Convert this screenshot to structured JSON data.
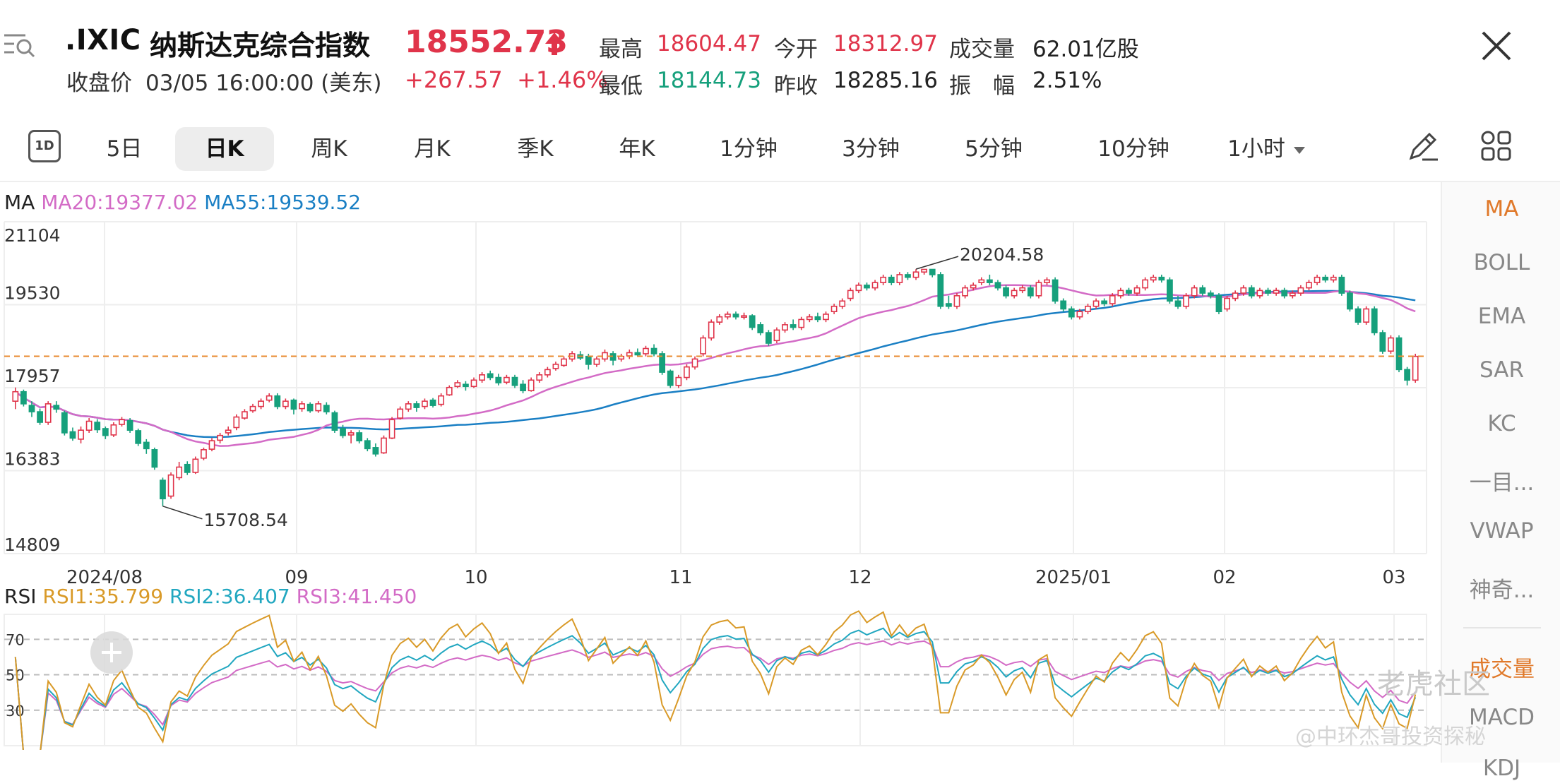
{
  "header": {
    "ticker": ".IXIC",
    "name": "纳斯达克综合指数",
    "price": "18552.73",
    "close_label": "收盘价",
    "close_time": "03/05 16:00:00 (美东)",
    "change": "+267.57",
    "change_pct": "+1.46%",
    "stats": {
      "high_label": "最高",
      "high": "18604.47",
      "low_label": "最低",
      "low": "18144.73",
      "open_label": "今开",
      "open": "18312.97",
      "prev_close_label": "昨收",
      "prev_close": "18285.16",
      "volume_label": "成交量",
      "volume": "62.01亿股",
      "amplitude_label": "振　幅",
      "amplitude": "2.51%"
    }
  },
  "tabs": [
    {
      "label": "5日"
    },
    {
      "label": "日K",
      "active": true
    },
    {
      "label": "周K"
    },
    {
      "label": "月K"
    },
    {
      "label": "季K"
    },
    {
      "label": "年K"
    },
    {
      "label": "1分钟"
    },
    {
      "label": "3分钟"
    },
    {
      "label": "5分钟"
    },
    {
      "label": "10分钟"
    },
    {
      "label": "1小时"
    }
  ],
  "tab_1d_icon": "1D",
  "ma_legend": {
    "title": "MA",
    "ma20": "MA20:19377.02",
    "ma55": "MA55:19539.52"
  },
  "rsi_legend": {
    "title": "RSI",
    "rsi1": "RSI1:35.799",
    "rsi2": "RSI2:36.407",
    "rsi3": "RSI3:41.450"
  },
  "side_indicators": [
    {
      "label": "MA",
      "active": true
    },
    {
      "label": "BOLL"
    },
    {
      "label": "EMA"
    },
    {
      "label": "SAR"
    },
    {
      "label": "KC"
    },
    {
      "label": "一目..."
    },
    {
      "label": "VWAP"
    },
    {
      "label": "神奇..."
    },
    {
      "label": "成交量"
    },
    {
      "label": "MACD"
    },
    {
      "label": "KDJ"
    }
  ],
  "watermark": {
    "main": "老虎社区",
    "sub": "@中环杰哥投资探秘"
  },
  "colors": {
    "up": "#e0344a",
    "down": "#16a07c",
    "ma20": "#d36bc6",
    "ma55": "#1a7fc4",
    "rsi1": "#d99a28",
    "rsi2": "#21a7c0",
    "rsi3": "#d36bc6",
    "dashed": "#e88a2e"
  },
  "icons": [
    "menu-search-icon",
    "price-up-arrow-icon",
    "close-icon",
    "timeframe-1d-icon",
    "chevron-down-icon",
    "draw-pen-icon",
    "layout-grid-icon",
    "add-icon"
  ],
  "chart_data": {
    "type": "candlestick",
    "y_ticks": [
      "21104",
      "19530",
      "17957",
      "16383",
      "14809"
    ],
    "x_ticks": [
      "2024/08",
      "09",
      "10",
      "11",
      "12",
      "2025/01",
      "02",
      "03"
    ],
    "annotations": {
      "high": "20204.58",
      "low": "15708.54"
    },
    "reference_price": 18552.73,
    "ylim": [
      14809,
      21104
    ],
    "candles": [
      [
        17700,
        17880,
        17550,
        17960
      ],
      [
        17880,
        17650,
        17600,
        17920
      ],
      [
        17620,
        17500,
        17400,
        17700
      ],
      [
        17500,
        17300,
        17250,
        17560
      ],
      [
        17300,
        17650,
        17250,
        17700
      ],
      [
        17620,
        17550,
        17480,
        17700
      ],
      [
        17480,
        17100,
        17050,
        17520
      ],
      [
        17120,
        17000,
        16950,
        17200
      ],
      [
        16980,
        17150,
        16900,
        17220
      ],
      [
        17150,
        17320,
        17100,
        17380
      ],
      [
        17300,
        17160,
        17100,
        17360
      ],
      [
        17180,
        17050,
        16980,
        17220
      ],
      [
        17060,
        17250,
        17020,
        17300
      ],
      [
        17260,
        17350,
        17220,
        17400
      ],
      [
        17330,
        17150,
        17100,
        17380
      ],
      [
        17140,
        16900,
        16850,
        17180
      ],
      [
        16920,
        16800,
        16700,
        16980
      ],
      [
        16780,
        16450,
        16400,
        16820
      ],
      [
        16200,
        15850,
        15708.54,
        16250
      ],
      [
        15900,
        16300,
        15850,
        16350
      ],
      [
        16250,
        16450,
        16200,
        16550
      ],
      [
        16500,
        16350,
        16300,
        16560
      ],
      [
        16350,
        16600,
        16320,
        16650
      ],
      [
        16620,
        16780,
        16580,
        16820
      ],
      [
        16790,
        16950,
        16750,
        17000
      ],
      [
        16960,
        17050,
        16900,
        17100
      ],
      [
        17100,
        17150,
        17050,
        17220
      ],
      [
        17200,
        17400,
        17150,
        17450
      ],
      [
        17380,
        17500,
        17350,
        17550
      ],
      [
        17520,
        17600,
        17480,
        17650
      ],
      [
        17600,
        17700,
        17550,
        17750
      ],
      [
        17720,
        17800,
        17680,
        17850
      ],
      [
        17800,
        17600,
        17550,
        17850
      ],
      [
        17600,
        17700,
        17550,
        17750
      ],
      [
        17720,
        17550,
        17450,
        17750
      ],
      [
        17560,
        17650,
        17500,
        17700
      ],
      [
        17640,
        17520,
        17480,
        17680
      ],
      [
        17520,
        17650,
        17480,
        17700
      ],
      [
        17620,
        17500,
        17450,
        17680
      ],
      [
        17480,
        17150,
        17100,
        17520
      ],
      [
        17180,
        17050,
        17000,
        17250
      ],
      [
        17060,
        17100,
        16900,
        17150
      ],
      [
        17100,
        16950,
        16900,
        17150
      ],
      [
        16950,
        16800,
        16750,
        17000
      ],
      [
        16820,
        16700,
        16650,
        16900
      ],
      [
        16720,
        17000,
        16700,
        17050
      ],
      [
        17000,
        17350,
        16980,
        17400
      ],
      [
        17380,
        17550,
        17350,
        17600
      ],
      [
        17550,
        17650,
        17500,
        17700
      ],
      [
        17650,
        17580,
        17500,
        17700
      ],
      [
        17600,
        17700,
        17550,
        17750
      ],
      [
        17720,
        17620,
        17580,
        17760
      ],
      [
        17640,
        17800,
        17600,
        17850
      ],
      [
        17820,
        17960,
        17800,
        18000
      ],
      [
        17980,
        18050,
        17950,
        18100
      ],
      [
        18020,
        17980,
        17900,
        18080
      ],
      [
        17980,
        18100,
        17950,
        18150
      ],
      [
        18100,
        18200,
        18050,
        18250
      ],
      [
        18220,
        18150,
        18100,
        18280
      ],
      [
        18150,
        18050,
        18000,
        18220
      ],
      [
        18060,
        18150,
        18020,
        18200
      ],
      [
        18150,
        18000,
        17950,
        18200
      ],
      [
        18020,
        17900,
        17850,
        18100
      ],
      [
        17900,
        18100,
        17880,
        18150
      ],
      [
        18100,
        18200,
        18050,
        18250
      ],
      [
        18200,
        18300,
        18150,
        18350
      ],
      [
        18320,
        18400,
        18280,
        18450
      ],
      [
        18380,
        18500,
        18350,
        18550
      ],
      [
        18500,
        18600,
        18450,
        18650
      ],
      [
        18580,
        18520,
        18480,
        18650
      ],
      [
        18550,
        18400,
        18300,
        18600
      ],
      [
        18400,
        18500,
        18350,
        18550
      ],
      [
        18500,
        18620,
        18450,
        18680
      ],
      [
        18600,
        18480,
        18380,
        18650
      ],
      [
        18500,
        18550,
        18450,
        18600
      ],
      [
        18560,
        18620,
        18500,
        18680
      ],
      [
        18620,
        18580,
        18550,
        18700
      ],
      [
        18600,
        18700,
        18550,
        18750
      ],
      [
        18700,
        18600,
        18550,
        18780
      ],
      [
        18600,
        18250,
        18200,
        18650
      ],
      [
        18270,
        18000,
        17950,
        18300
      ],
      [
        18000,
        18150,
        17950,
        18200
      ],
      [
        18150,
        18350,
        18100,
        18400
      ],
      [
        18350,
        18500,
        18300,
        18550
      ],
      [
        18600,
        18900,
        18550,
        18950
      ],
      [
        18900,
        19200,
        18850,
        19250
      ],
      [
        19200,
        19300,
        19150,
        19350
      ],
      [
        19300,
        19350,
        19250,
        19400
      ],
      [
        19350,
        19300,
        19250,
        19400
      ],
      [
        19300,
        19320,
        19250,
        19380
      ],
      [
        19320,
        19100,
        19050,
        19350
      ],
      [
        19150,
        19000,
        18950,
        19200
      ],
      [
        19000,
        18800,
        18750,
        19050
      ],
      [
        18850,
        19050,
        18800,
        19100
      ],
      [
        19050,
        19150,
        19000,
        19200
      ],
      [
        19150,
        19100,
        19050,
        19250
      ],
      [
        19100,
        19250,
        19050,
        19300
      ],
      [
        19250,
        19300,
        19200,
        19350
      ],
      [
        19300,
        19250,
        19200,
        19380
      ],
      [
        19250,
        19350,
        19200,
        19400
      ],
      [
        19400,
        19500,
        19350,
        19550
      ],
      [
        19500,
        19600,
        19450,
        19650
      ],
      [
        19650,
        19800,
        19600,
        19850
      ],
      [
        19800,
        19900,
        19750,
        19950
      ],
      [
        19900,
        19850,
        19800,
        19950
      ],
      [
        19850,
        19950,
        19800,
        20000
      ],
      [
        19950,
        20050,
        19900,
        20100
      ],
      [
        20050,
        19950,
        19900,
        20100
      ],
      [
        19950,
        20100,
        19900,
        20150
      ],
      [
        20100,
        20050,
        20000,
        20150
      ],
      [
        20050,
        20150,
        20000,
        20204.58
      ],
      [
        20150,
        20200,
        20100,
        20204.58
      ],
      [
        20200,
        20100,
        20050,
        20204.58
      ],
      [
        20100,
        19500,
        19450,
        20150
      ],
      [
        19550,
        19500,
        19450,
        19700
      ],
      [
        19500,
        19700,
        19450,
        19750
      ],
      [
        19700,
        19850,
        19650,
        19900
      ],
      [
        19850,
        19900,
        19800,
        19950
      ],
      [
        19950,
        20000,
        19900,
        20050
      ],
      [
        20000,
        19950,
        19900,
        20100
      ],
      [
        19950,
        19850,
        19800,
        20000
      ],
      [
        19850,
        19700,
        19650,
        19900
      ],
      [
        19700,
        19800,
        19650,
        19850
      ],
      [
        19800,
        19850,
        19750,
        19900
      ],
      [
        19850,
        19700,
        19650,
        19900
      ],
      [
        19700,
        19950,
        19650,
        20000
      ],
      [
        19950,
        20000,
        19900,
        20050
      ],
      [
        20000,
        19600,
        19550,
        20050
      ],
      [
        19600,
        19450,
        19400,
        19650
      ],
      [
        19450,
        19300,
        19250,
        19500
      ],
      [
        19300,
        19400,
        19250,
        19450
      ],
      [
        19400,
        19500,
        19350,
        19550
      ],
      [
        19500,
        19600,
        19450,
        19650
      ],
      [
        19600,
        19550,
        19500,
        19650
      ],
      [
        19550,
        19700,
        19500,
        19750
      ],
      [
        19700,
        19800,
        19650,
        19850
      ],
      [
        19800,
        19750,
        19700,
        19850
      ],
      [
        19750,
        19850,
        19700,
        19900
      ],
      [
        19850,
        20000,
        19800,
        20050
      ],
      [
        20000,
        20050,
        19950,
        20100
      ],
      [
        20050,
        20000,
        19950,
        20100
      ],
      [
        20000,
        19600,
        19550,
        20050
      ],
      [
        19600,
        19500,
        19450,
        19700
      ],
      [
        19500,
        19700,
        19450,
        19750
      ],
      [
        19700,
        19850,
        19650,
        19900
      ],
      [
        19850,
        19750,
        19700,
        19900
      ],
      [
        19750,
        19700,
        19650,
        19800
      ],
      [
        19700,
        19400,
        19350,
        19750
      ],
      [
        19450,
        19650,
        19400,
        19700
      ],
      [
        19650,
        19750,
        19600,
        19800
      ],
      [
        19750,
        19850,
        19700,
        19900
      ],
      [
        19850,
        19700,
        19650,
        19900
      ],
      [
        19700,
        19800,
        19650,
        19850
      ],
      [
        19800,
        19750,
        19700,
        19850
      ],
      [
        19750,
        19800,
        19700,
        19850
      ],
      [
        19800,
        19700,
        19650,
        19850
      ],
      [
        19700,
        19750,
        19650,
        19800
      ],
      [
        19750,
        19850,
        19700,
        19900
      ],
      [
        19850,
        19950,
        19800,
        20000
      ],
      [
        19950,
        20050,
        19900,
        20100
      ],
      [
        20050,
        20000,
        19950,
        20100
      ],
      [
        20000,
        20050,
        19950,
        20100
      ],
      [
        20050,
        19750,
        19700,
        20100
      ],
      [
        19750,
        19450,
        19400,
        19800
      ],
      [
        19450,
        19200,
        19150,
        19500
      ],
      [
        19200,
        19450,
        19150,
        19500
      ],
      [
        19450,
        19000,
        18950,
        19500
      ],
      [
        19000,
        18650,
        18600,
        19050
      ],
      [
        18650,
        18900,
        18600,
        18950
      ],
      [
        18900,
        18300,
        18250,
        18950
      ],
      [
        18300,
        18100,
        18000,
        18350
      ],
      [
        18100,
        18550,
        18050,
        18600
      ]
    ]
  }
}
